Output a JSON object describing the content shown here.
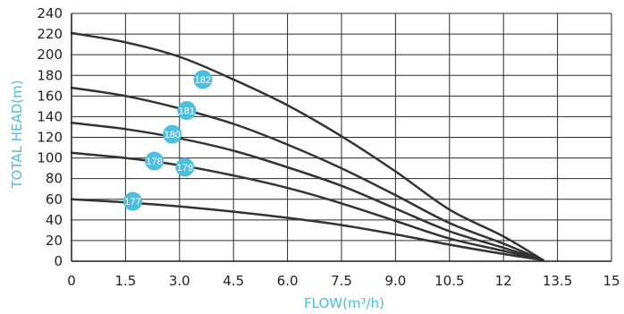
{
  "chart_data": {
    "type": "line",
    "title": "",
    "xlabel": "FLOW(m³/h)",
    "ylabel": "TOTAL HEAD(m)",
    "xlim": [
      0,
      15
    ],
    "ylim": [
      0,
      240
    ],
    "xticks": [
      "0",
      "1.5",
      "3.0",
      "4.5",
      "6.0",
      "7.5",
      "9.0",
      "10.5",
      "12",
      "13.5",
      "15"
    ],
    "yticks": [
      "0",
      "20",
      "40",
      "60",
      "80",
      "100",
      "120",
      "140",
      "160",
      "180",
      "200",
      "220",
      "240"
    ],
    "grid": true,
    "label_color": "#4bbfdd",
    "line_color": "#333333",
    "series": [
      {
        "name": "182",
        "x": [
          0,
          1.5,
          3.0,
          4.5,
          6.0,
          7.5,
          9.0,
          10.5,
          12,
          13.1
        ],
        "y": [
          221,
          212,
          198,
          176,
          151,
          121,
          87,
          50,
          24,
          1
        ],
        "label_at": [
          3.65,
          176
        ]
      },
      {
        "name": "181",
        "x": [
          0,
          1.5,
          3.0,
          4.5,
          6.0,
          7.5,
          9.0,
          10.5,
          12,
          13.1
        ],
        "y": [
          168,
          160,
          148,
          133,
          113,
          90,
          64,
          37,
          17,
          1
        ],
        "label_at": [
          3.2,
          146
        ]
      },
      {
        "name": "180",
        "x": [
          0,
          1.5,
          3.0,
          4.5,
          6.0,
          7.5,
          9.0,
          10.5,
          12,
          13.1
        ],
        "y": [
          134,
          128,
          119,
          107,
          91,
          73,
          51,
          29,
          13,
          1
        ],
        "label_at": [
          2.8,
          123
        ]
      },
      {
        "name": "179",
        "x": [
          0,
          1.5,
          3.0,
          4.5,
          6.0,
          7.5,
          9.0,
          10.5,
          12,
          13.1
        ],
        "y": [
          105,
          100,
          93,
          83,
          71,
          56,
          39,
          22,
          10,
          1
        ],
        "label_at": [
          3.15,
          91
        ]
      },
      {
        "name": "178",
        "x": [],
        "y": [],
        "label_at": [
          2.3,
          97
        ]
      },
      {
        "name": "177",
        "x": [
          0,
          1.5,
          3.0,
          4.5,
          6.0,
          7.5,
          9.0,
          10.5,
          12,
          13.1
        ],
        "y": [
          60,
          57,
          53,
          48,
          42,
          35,
          26,
          16,
          7,
          1
        ],
        "label_at": [
          1.7,
          58
        ]
      }
    ]
  }
}
